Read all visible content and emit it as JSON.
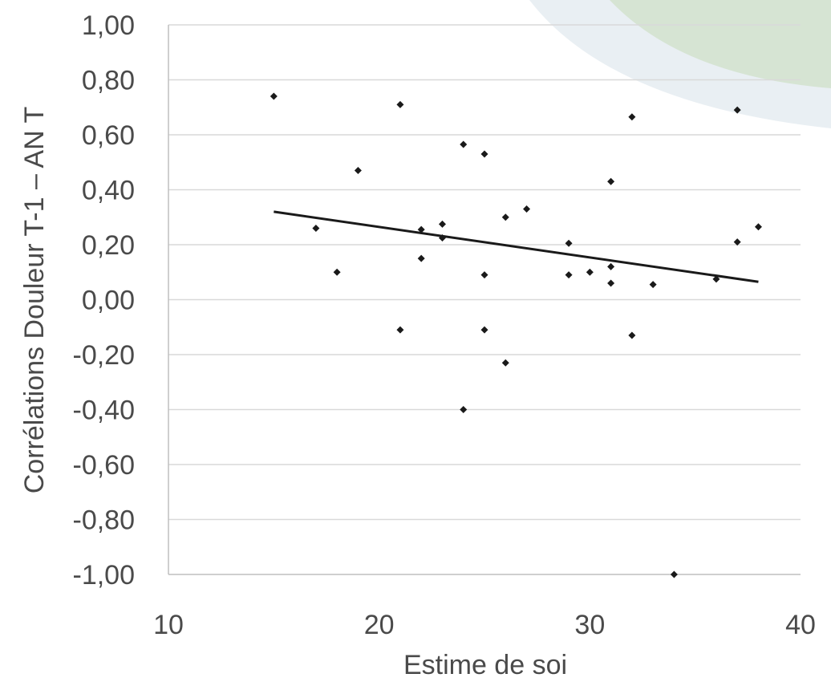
{
  "colors": {
    "grid": "#d9d9d9",
    "axis": "#bfbfbf",
    "point": "#1a1a1a",
    "trendline": "#1a1a1a",
    "text": "#4a4a4a",
    "decor_light": "#dfe8ee",
    "decor_green": "#cfe0c8"
  },
  "chart_data": {
    "type": "scatter",
    "title": "",
    "xlabel": "Estime de soi",
    "ylabel": "Corrélations Douleur T-1 – AN T",
    "xlim": [
      10,
      40
    ],
    "ylim": [
      -1.0,
      1.0
    ],
    "x_ticks": [
      10,
      20,
      30,
      40
    ],
    "y_ticks": [
      1.0,
      0.8,
      0.6,
      0.4,
      0.2,
      0.0,
      -0.2,
      -0.4,
      -0.6,
      -0.8,
      -1.0
    ],
    "y_tick_labels": [
      "1,00",
      "0,80",
      "0,60",
      "0,40",
      "0,20",
      "0,00",
      "-0,20",
      "-0,40",
      "-0,60",
      "-0,80",
      "-1,00"
    ],
    "grid": "horizontal",
    "legend": "none",
    "series": [
      {
        "points": [
          [
            15,
            0.74
          ],
          [
            17,
            0.26
          ],
          [
            18,
            0.1
          ],
          [
            19,
            0.47
          ],
          [
            21,
            0.71
          ],
          [
            21,
            -0.11
          ],
          [
            22,
            0.255
          ],
          [
            22,
            0.15
          ],
          [
            23,
            0.275
          ],
          [
            23,
            0.225
          ],
          [
            24,
            0.565
          ],
          [
            24,
            -0.4
          ],
          [
            25,
            0.53
          ],
          [
            25,
            0.09
          ],
          [
            25,
            -0.11
          ],
          [
            26,
            0.3
          ],
          [
            26,
            -0.23
          ],
          [
            27,
            0.33
          ],
          [
            29,
            0.205
          ],
          [
            29,
            0.09
          ],
          [
            30,
            0.1
          ],
          [
            31,
            0.43
          ],
          [
            31,
            0.12
          ],
          [
            31,
            0.06
          ],
          [
            32,
            0.665
          ],
          [
            32,
            -0.13
          ],
          [
            33,
            0.055
          ],
          [
            34,
            -1.0
          ],
          [
            36,
            0.075
          ],
          [
            37,
            0.69
          ],
          [
            37,
            0.21
          ],
          [
            38,
            0.265
          ]
        ]
      }
    ],
    "trendline": {
      "x": [
        15,
        38
      ],
      "y": [
        0.32,
        0.065
      ]
    }
  }
}
